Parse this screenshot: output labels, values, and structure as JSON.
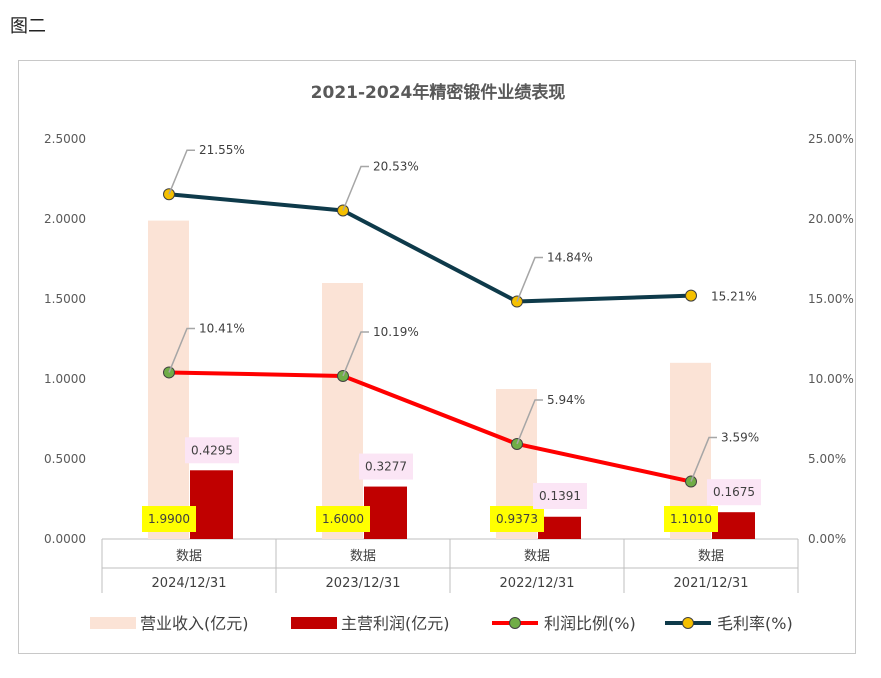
{
  "figure_caption": "图二",
  "chart_data": {
    "type": "bar",
    "title": "2021-2024年精密锻件业绩表现",
    "categories": [
      "2024/12/31",
      "2023/12/31",
      "2022/12/31",
      "2021/12/31"
    ],
    "sub_category_label": "数据",
    "y_left": {
      "min": 0,
      "max": 2.5,
      "ticks": [
        "0.0000",
        "0.5000",
        "1.0000",
        "1.5000",
        "2.0000",
        "2.5000"
      ]
    },
    "y_right": {
      "min": 0,
      "max": 25,
      "ticks": [
        "0.00%",
        "5.00%",
        "10.00%",
        "15.00%",
        "20.00%",
        "25.00%"
      ]
    },
    "series": [
      {
        "name": "营业收入(亿元)",
        "kind": "bar",
        "axis": "left",
        "color": "#fbe3d6",
        "values": [
          1.99,
          1.6,
          0.9373,
          1.101
        ],
        "labels": [
          "1.9900",
          "1.6000",
          "0.9373",
          "1.1010"
        ],
        "label_bg": "#ffff00"
      },
      {
        "name": "主营利润(亿元)",
        "kind": "bar",
        "axis": "left",
        "color": "#c00000",
        "values": [
          0.4295,
          0.3277,
          0.1391,
          0.1675
        ],
        "labels": [
          "0.4295",
          "0.3277",
          "0.1391",
          "0.1675"
        ],
        "label_bg": "#fbe5f5"
      },
      {
        "name": "利润比例(%)",
        "kind": "line",
        "axis": "right",
        "color": "#ff0000",
        "marker": "#70ad47",
        "values": [
          10.41,
          10.19,
          5.94,
          3.59
        ],
        "labels": [
          "10.41%",
          "10.19%",
          "5.94%",
          "3.59%"
        ]
      },
      {
        "name": "毛利率(%)",
        "kind": "line",
        "axis": "right",
        "color": "#0e3a4a",
        "marker": "#f5c000",
        "values": [
          21.55,
          20.53,
          14.84,
          15.21
        ],
        "labels": [
          "21.55%",
          "20.53%",
          "14.84%",
          "15.21%"
        ]
      }
    ],
    "legend_position": "bottom",
    "grid": false
  }
}
